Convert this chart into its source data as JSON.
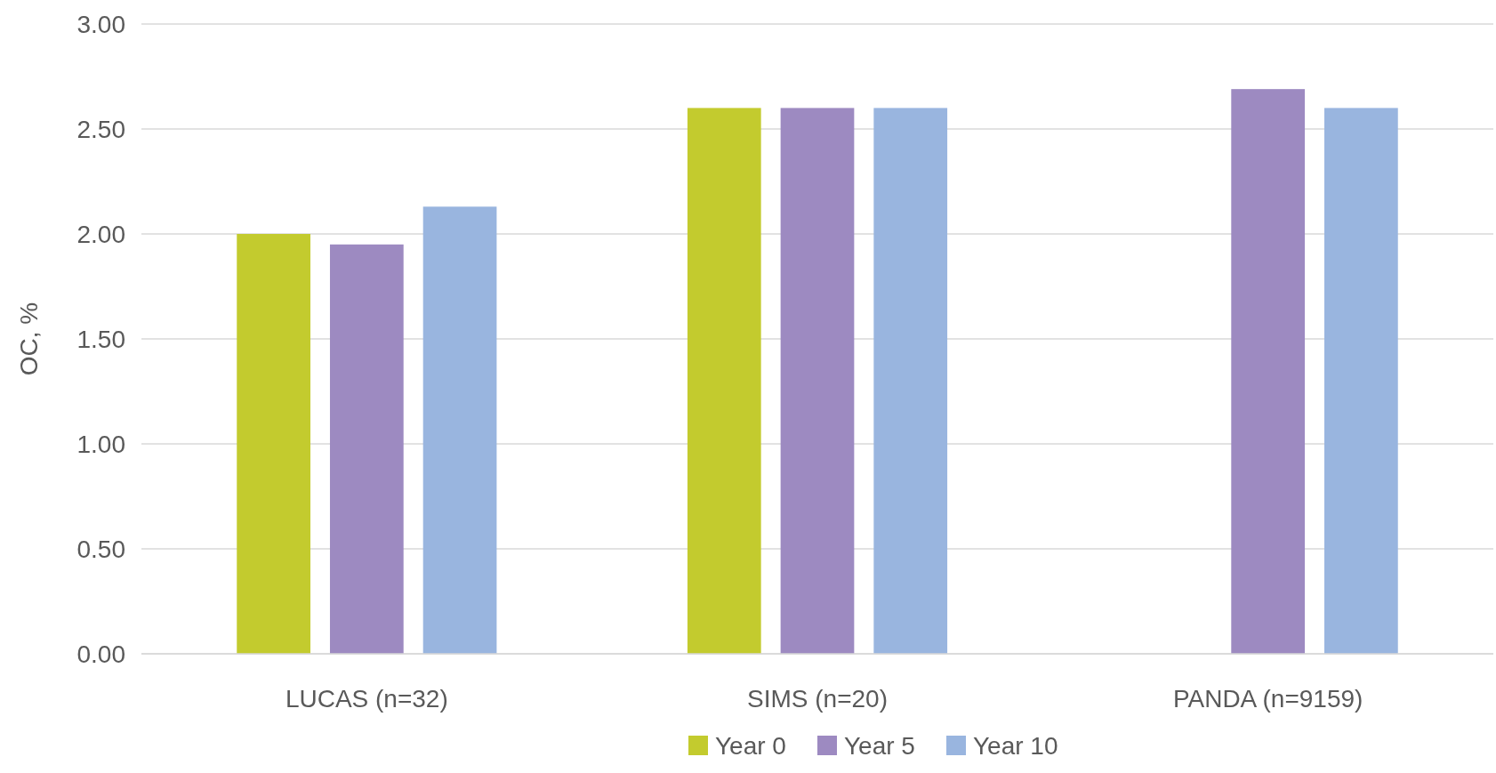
{
  "chart_data": {
    "type": "bar",
    "ylabel": "OC, %",
    "categories": [
      "LUCAS (n=32)",
      "SIMS (n=20)",
      "PANDA (n=9159)"
    ],
    "series": [
      {
        "name": "Year 0",
        "color": "#c3cb2e",
        "values": [
          2.0,
          2.6,
          null
        ]
      },
      {
        "name": "Year 5",
        "color": "#9d8ac1",
        "values": [
          1.95,
          2.6,
          2.69
        ]
      },
      {
        "name": "Year 10",
        "color": "#99b5df",
        "values": [
          2.13,
          2.6,
          2.6
        ]
      }
    ],
    "ylim": [
      0,
      3
    ],
    "yticks": [
      {
        "value": 0,
        "label": "0.00"
      },
      {
        "value": 0.5,
        "label": "0.50"
      },
      {
        "value": 1,
        "label": "1.00"
      },
      {
        "value": 1.5,
        "label": "1.50"
      },
      {
        "value": 2,
        "label": "2.00"
      },
      {
        "value": 2.5,
        "label": "2.50"
      },
      {
        "value": 3,
        "label": "3.00"
      }
    ],
    "grid": "y",
    "legend": "bottom"
  }
}
